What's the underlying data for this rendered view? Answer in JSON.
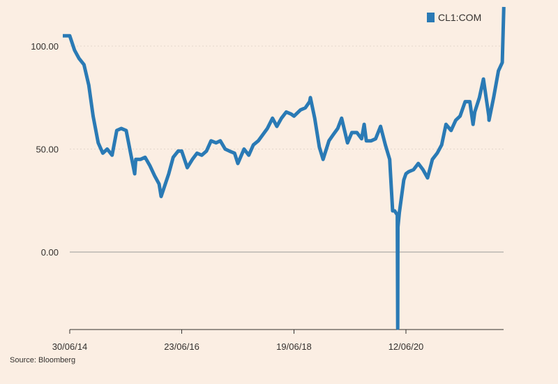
{
  "colors": {
    "background": "#fbeee3",
    "series": "#2a7ab5",
    "zero_line": "#999999",
    "grid": "#e3d6cb",
    "axis": "#33302e"
  },
  "source": "Source: Bloomberg",
  "chart_data": {
    "type": "line",
    "title": "",
    "xlabel": "",
    "ylabel": "",
    "legend_position": "top-right",
    "ylim": [
      -38,
      108
    ],
    "yticks": [
      0,
      50,
      100
    ],
    "ytick_labels": [
      "0.00",
      "50.00",
      "100.00"
    ],
    "xticks": [
      "2014-06-30",
      "2016-06-23",
      "2018-06-19",
      "2020-06-12"
    ],
    "xtick_labels": [
      "30/06/14",
      "23/06/16",
      "19/06/18",
      "12/06/20"
    ],
    "grid": "horizontal dotted",
    "series": [
      {
        "name": "CL1:COM",
        "x": [
          "2014-06-30",
          "2014-07-31",
          "2014-08-29",
          "2014-09-30",
          "2014-10-31",
          "2014-11-28",
          "2014-12-31",
          "2015-01-30",
          "2015-02-27",
          "2015-03-31",
          "2015-04-30",
          "2015-05-29",
          "2015-06-30",
          "2015-07-31",
          "2015-08-24",
          "2015-08-31",
          "2015-09-30",
          "2015-10-30",
          "2015-11-30",
          "2015-12-31",
          "2016-01-29",
          "2016-02-11",
          "2016-03-31",
          "2016-04-29",
          "2016-05-31",
          "2016-06-23",
          "2016-07-29",
          "2016-08-31",
          "2016-09-30",
          "2016-10-31",
          "2016-11-30",
          "2016-12-30",
          "2017-01-31",
          "2017-02-28",
          "2017-03-31",
          "2017-04-28",
          "2017-05-31",
          "2017-06-21",
          "2017-07-31",
          "2017-08-31",
          "2017-09-29",
          "2017-10-31",
          "2017-11-30",
          "2017-12-29",
          "2018-01-31",
          "2018-02-28",
          "2018-03-30",
          "2018-04-30",
          "2018-05-31",
          "2018-06-19",
          "2018-07-31",
          "2018-08-31",
          "2018-09-28",
          "2018-10-03",
          "2018-10-31",
          "2018-11-30",
          "2018-12-24",
          "2019-01-31",
          "2019-02-28",
          "2019-03-29",
          "2019-04-23",
          "2019-05-31",
          "2019-06-28",
          "2019-07-31",
          "2019-08-30",
          "2019-09-16",
          "2019-09-30",
          "2019-10-31",
          "2019-11-29",
          "2019-12-31",
          "2020-01-31",
          "2020-02-28",
          "2020-03-18",
          "2020-03-31",
          "2020-04-17",
          "2020-04-20",
          "2020-04-21",
          "2020-04-30",
          "2020-05-29",
          "2020-06-12",
          "2020-06-30",
          "2020-07-31",
          "2020-08-31",
          "2020-09-30",
          "2020-10-30",
          "2020-11-30",
          "2020-12-31",
          "2021-01-29",
          "2021-02-26",
          "2021-03-31",
          "2021-04-30",
          "2021-05-28",
          "2021-06-30",
          "2021-07-30",
          "2021-08-20",
          "2021-08-31",
          "2021-09-30",
          "2021-10-26",
          "2021-11-30",
          "2021-12-01",
          "2021-12-31",
          "2022-01-31",
          "2022-02-25",
          "2022-03-07"
        ],
        "values": [
          105,
          98,
          94,
          91,
          81,
          66,
          53,
          48,
          50,
          47,
          59,
          60,
          59,
          47,
          38,
          45,
          45,
          46,
          42,
          37,
          33,
          27,
          38,
          46,
          49,
          49,
          41,
          45,
          48,
          47,
          49,
          54,
          53,
          54,
          50,
          49,
          48,
          43,
          50,
          47,
          52,
          54,
          57,
          60,
          65,
          61,
          65,
          68,
          67,
          66,
          69,
          70,
          73,
          75,
          65,
          51,
          45,
          54,
          57,
          60,
          65,
          53,
          58,
          58,
          55,
          62,
          54,
          54,
          55,
          61,
          52,
          45,
          20,
          20,
          18,
          -37,
          12,
          19,
          35,
          38,
          39,
          40,
          43,
          40,
          36,
          45,
          48,
          52,
          62,
          59,
          64,
          66,
          73,
          73,
          62,
          68,
          75,
          84,
          66,
          64,
          75,
          88,
          92,
          119
        ]
      }
    ]
  }
}
